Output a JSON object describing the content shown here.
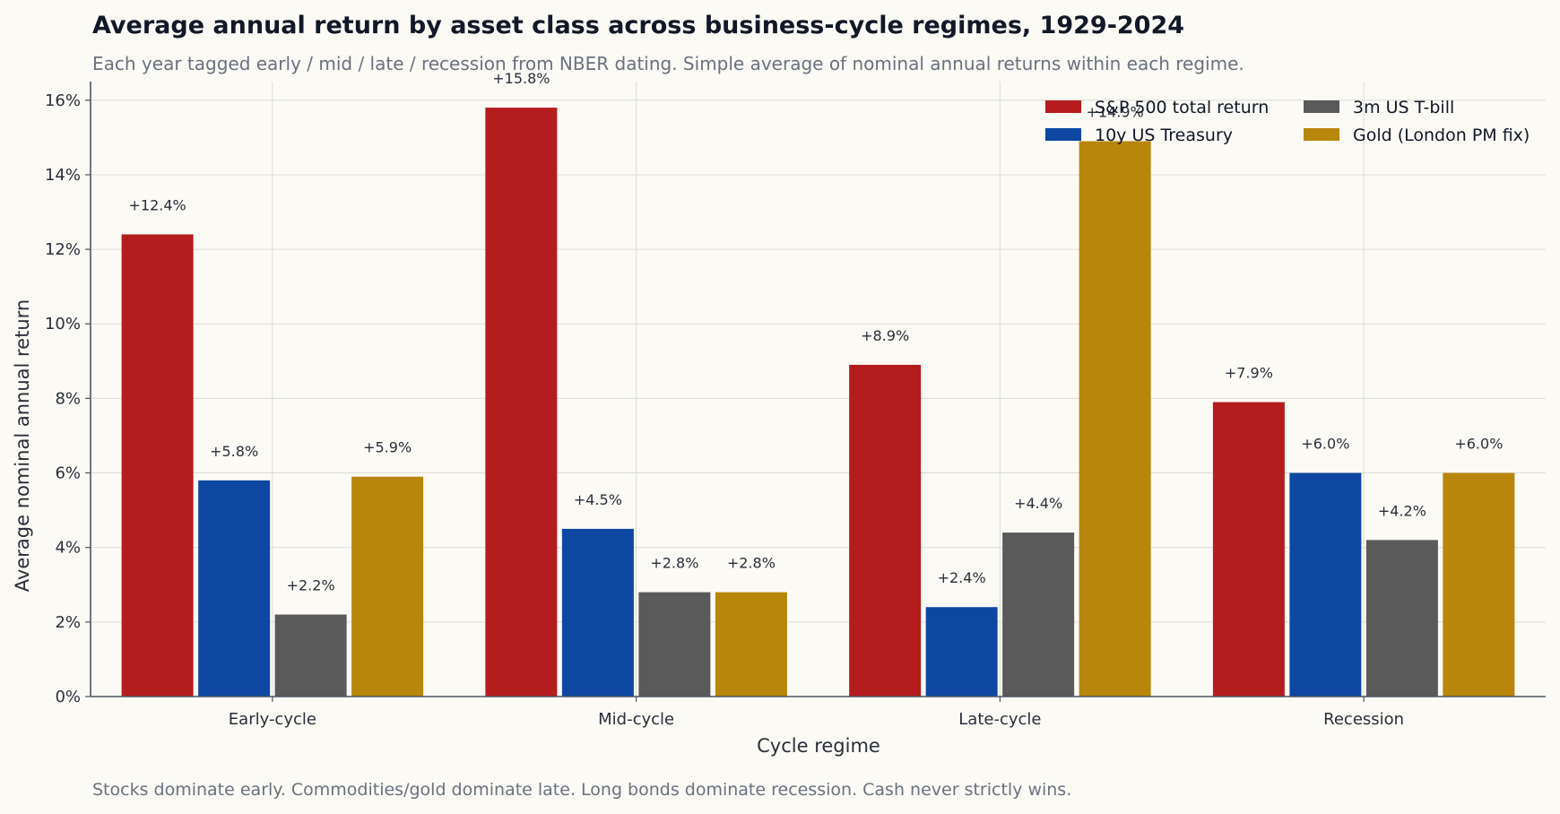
{
  "chart_data": {
    "type": "bar",
    "title": "Average annual return by asset class across business-cycle regimes, 1929-2024",
    "subtitle": "Each year tagged early / mid / late / recession from NBER dating. Simple average of nominal annual returns within each regime.",
    "xlabel": "Cycle regime",
    "ylabel": "Average nominal annual return",
    "footnote": "Stocks dominate early. Commodities/gold dominate late. Long bonds dominate recession. Cash never strictly wins.",
    "categories": [
      "Early-cycle",
      "Mid-cycle",
      "Late-cycle",
      "Recession"
    ],
    "ylim": [
      0,
      16.5
    ],
    "yticks": [
      0,
      2,
      4,
      6,
      8,
      10,
      12,
      14,
      16
    ],
    "ytick_labels": [
      "0%",
      "2%",
      "4%",
      "6%",
      "8%",
      "10%",
      "12%",
      "14%",
      "16%"
    ],
    "grid": true,
    "legend_position": "top-right",
    "series": [
      {
        "name": "S&P 500 total return",
        "color": "#b51c1e",
        "values": [
          12.4,
          15.8,
          8.9,
          7.9
        ],
        "labels": [
          "+12.4%",
          "+15.8%",
          "+8.9%",
          "+7.9%"
        ]
      },
      {
        "name": "10y US Treasury",
        "color": "#0d47a1",
        "values": [
          5.8,
          4.5,
          2.4,
          6.0
        ],
        "labels": [
          "+5.8%",
          "+4.5%",
          "+2.4%",
          "+6.0%"
        ]
      },
      {
        "name": "3m US T-bill",
        "color": "#5a5a5a",
        "values": [
          2.2,
          2.8,
          4.4,
          4.2
        ],
        "labels": [
          "+2.2%",
          "+2.8%",
          "+4.4%",
          "+4.2%"
        ]
      },
      {
        "name": "Gold (London PM fix)",
        "color": "#b8860b",
        "values": [
          5.9,
          2.8,
          14.9,
          6.0
        ],
        "labels": [
          "+5.9%",
          "+2.8%",
          "+14.9%",
          "+6.0%"
        ]
      }
    ]
  }
}
